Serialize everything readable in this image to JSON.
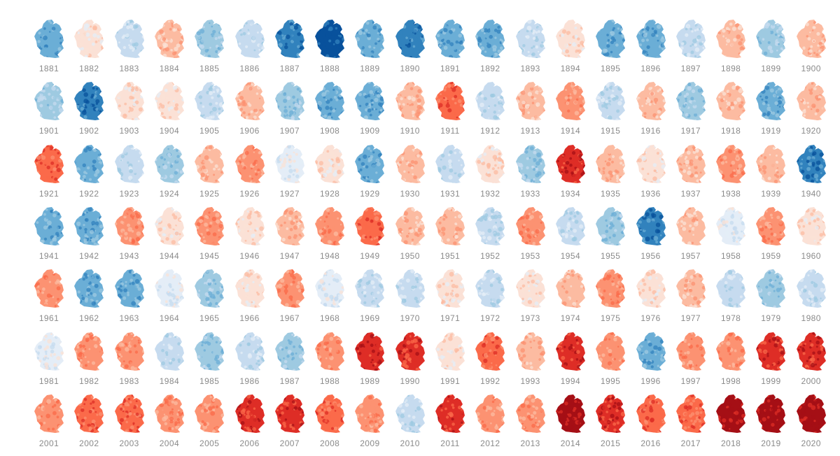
{
  "color_scale": [
    "#08519c",
    "#3182bd",
    "#6baed6",
    "#9ecae1",
    "#c6dbef",
    "#e4edf7",
    "#fbe1d6",
    "#fcbba1",
    "#fc9272",
    "#fb6a4a",
    "#de2d26",
    "#a50f15"
  ],
  "years": [
    {
      "label": "1881",
      "level": 2
    },
    {
      "label": "1882",
      "level": 6
    },
    {
      "label": "1883",
      "level": 4
    },
    {
      "label": "1884",
      "level": 7
    },
    {
      "label": "1885",
      "level": 3
    },
    {
      "label": "1886",
      "level": 4
    },
    {
      "label": "1887",
      "level": 1
    },
    {
      "label": "1888",
      "level": 0
    },
    {
      "label": "1889",
      "level": 2
    },
    {
      "label": "1890",
      "level": 1
    },
    {
      "label": "1891",
      "level": 2
    },
    {
      "label": "1892",
      "level": 2
    },
    {
      "label": "1893",
      "level": 4
    },
    {
      "label": "1894",
      "level": 6
    },
    {
      "label": "1895",
      "level": 2
    },
    {
      "label": "1896",
      "level": 2
    },
    {
      "label": "1897",
      "level": 4
    },
    {
      "label": "1898",
      "level": 7
    },
    {
      "label": "1899",
      "level": 3
    },
    {
      "label": "1900",
      "level": 7
    },
    {
      "label": "1901",
      "level": 3
    },
    {
      "label": "1902",
      "level": 1
    },
    {
      "label": "1903",
      "level": 6
    },
    {
      "label": "1904",
      "level": 6
    },
    {
      "label": "1905",
      "level": 4
    },
    {
      "label": "1906",
      "level": 7
    },
    {
      "label": "1907",
      "level": 3
    },
    {
      "label": "1908",
      "level": 2
    },
    {
      "label": "1909",
      "level": 2
    },
    {
      "label": "1910",
      "level": 7
    },
    {
      "label": "1911",
      "level": 9
    },
    {
      "label": "1912",
      "level": 4
    },
    {
      "label": "1913",
      "level": 7
    },
    {
      "label": "1914",
      "level": 8
    },
    {
      "label": "1915",
      "level": 4
    },
    {
      "label": "1916",
      "level": 7
    },
    {
      "label": "1917",
      "level": 3
    },
    {
      "label": "1918",
      "level": 7
    },
    {
      "label": "1919",
      "level": 2
    },
    {
      "label": "1920",
      "level": 7
    },
    {
      "label": "1921",
      "level": 9
    },
    {
      "label": "1922",
      "level": 2
    },
    {
      "label": "1923",
      "level": 4
    },
    {
      "label": "1924",
      "level": 3
    },
    {
      "label": "1925",
      "level": 7
    },
    {
      "label": "1926",
      "level": 8
    },
    {
      "label": "1927",
      "level": 5
    },
    {
      "label": "1928",
      "level": 6
    },
    {
      "label": "1929",
      "level": 2
    },
    {
      "label": "1930",
      "level": 7
    },
    {
      "label": "1931",
      "level": 4
    },
    {
      "label": "1932",
      "level": 6
    },
    {
      "label": "1933",
      "level": 3
    },
    {
      "label": "1934",
      "level": 10
    },
    {
      "label": "1935",
      "level": 7
    },
    {
      "label": "1936",
      "level": 6
    },
    {
      "label": "1937",
      "level": 7
    },
    {
      "label": "1938",
      "level": 8
    },
    {
      "label": "1939",
      "level": 7
    },
    {
      "label": "1940",
      "level": 1
    },
    {
      "label": "1941",
      "level": 2
    },
    {
      "label": "1942",
      "level": 2
    },
    {
      "label": "1943",
      "level": 8
    },
    {
      "label": "1944",
      "level": 6
    },
    {
      "label": "1945",
      "level": 8
    },
    {
      "label": "1946",
      "level": 6
    },
    {
      "label": "1947",
      "level": 7
    },
    {
      "label": "1948",
      "level": 8
    },
    {
      "label": "1949",
      "level": 9
    },
    {
      "label": "1950",
      "level": 7
    },
    {
      "label": "1951",
      "level": 7
    },
    {
      "label": "1952",
      "level": 4
    },
    {
      "label": "1953",
      "level": 8
    },
    {
      "label": "1954",
      "level": 4
    },
    {
      "label": "1955",
      "level": 3
    },
    {
      "label": "1956",
      "level": 1
    },
    {
      "label": "1957",
      "level": 7
    },
    {
      "label": "1958",
      "level": 5
    },
    {
      "label": "1959",
      "level": 8
    },
    {
      "label": "1960",
      "level": 6
    },
    {
      "label": "1961",
      "level": 8
    },
    {
      "label": "1962",
      "level": 2
    },
    {
      "label": "1963",
      "level": 2
    },
    {
      "label": "1964",
      "level": 5
    },
    {
      "label": "1965",
      "level": 3
    },
    {
      "label": "1966",
      "level": 6
    },
    {
      "label": "1967",
      "level": 8
    },
    {
      "label": "1968",
      "level": 5
    },
    {
      "label": "1969",
      "level": 4
    },
    {
      "label": "1970",
      "level": 4
    },
    {
      "label": "1971",
      "level": 6
    },
    {
      "label": "1972",
      "level": 4
    },
    {
      "label": "1973",
      "level": 6
    },
    {
      "label": "1974",
      "level": 7
    },
    {
      "label": "1975",
      "level": 8
    },
    {
      "label": "1976",
      "level": 6
    },
    {
      "label": "1977",
      "level": 7
    },
    {
      "label": "1978",
      "level": 4
    },
    {
      "label": "1979",
      "level": 3
    },
    {
      "label": "1980",
      "level": 4
    },
    {
      "label": "1981",
      "level": 5
    },
    {
      "label": "1982",
      "level": 8
    },
    {
      "label": "1983",
      "level": 8
    },
    {
      "label": "1984",
      "level": 4
    },
    {
      "label": "1985",
      "level": 3
    },
    {
      "label": "1986",
      "level": 4
    },
    {
      "label": "1987",
      "level": 3
    },
    {
      "label": "1988",
      "level": 8
    },
    {
      "label": "1989",
      "level": 10
    },
    {
      "label": "1990",
      "level": 10
    },
    {
      "label": "1991",
      "level": 6
    },
    {
      "label": "1992",
      "level": 9
    },
    {
      "label": "1993",
      "level": 7
    },
    {
      "label": "1994",
      "level": 10
    },
    {
      "label": "1995",
      "level": 8
    },
    {
      "label": "1996",
      "level": 2
    },
    {
      "label": "1997",
      "level": 8
    },
    {
      "label": "1998",
      "level": 8
    },
    {
      "label": "1999",
      "level": 10
    },
    {
      "label": "2000",
      "level": 10
    },
    {
      "label": "2001",
      "level": 8
    },
    {
      "label": "2002",
      "level": 9
    },
    {
      "label": "2003",
      "level": 9
    },
    {
      "label": "2004",
      "level": 8
    },
    {
      "label": "2005",
      "level": 8
    },
    {
      "label": "2006",
      "level": 10
    },
    {
      "label": "2007",
      "level": 10
    },
    {
      "label": "2008",
      "level": 9
    },
    {
      "label": "2009",
      "level": 8
    },
    {
      "label": "2010",
      "level": 4
    },
    {
      "label": "2011",
      "level": 10
    },
    {
      "label": "2012",
      "level": 8
    },
    {
      "label": "2013",
      "level": 8
    },
    {
      "label": "2014",
      "level": 11
    },
    {
      "label": "2015",
      "level": 10
    },
    {
      "label": "2016",
      "level": 9
    },
    {
      "label": "2017",
      "level": 9
    },
    {
      "label": "2018",
      "level": 11
    },
    {
      "label": "2019",
      "level": 11
    },
    {
      "label": "2020",
      "level": 11
    }
  ]
}
